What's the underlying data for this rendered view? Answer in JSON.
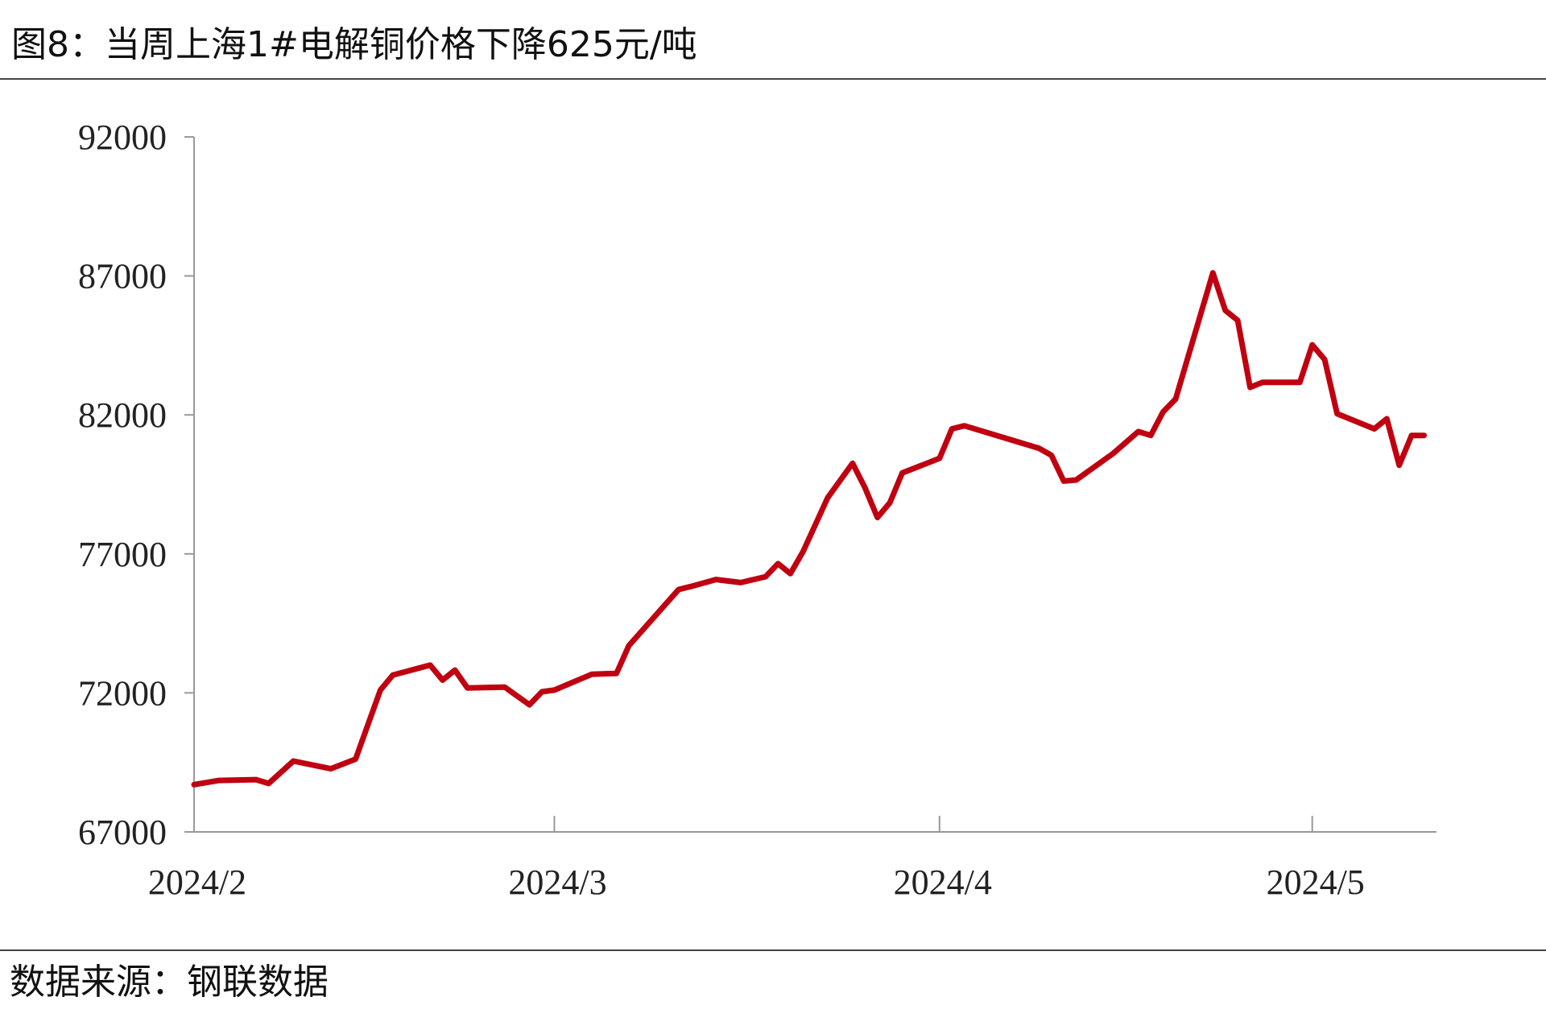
{
  "chart_data": {
    "type": "line",
    "title": "图8：当周上海1#电解铜价格下降625元/吨",
    "source": "数据来源：钢联数据",
    "x": [
      0,
      2,
      5,
      6,
      8,
      11,
      13,
      15,
      16,
      19,
      20,
      21,
      22,
      25,
      27,
      28,
      29,
      32,
      34,
      35,
      39,
      40,
      42,
      44,
      46,
      47,
      48,
      49,
      51,
      53,
      54,
      55,
      56,
      57,
      60,
      61,
      62,
      68,
      69,
      70,
      71,
      74,
      76,
      77,
      78,
      79,
      82,
      83,
      84,
      85,
      86,
      89,
      90,
      91,
      92,
      95,
      96,
      97,
      98,
      99
    ],
    "series": [
      {
        "name": "上海1#电解铜",
        "color": "#c00010",
        "values": [
          68700,
          68850,
          68880,
          68740,
          69550,
          69270,
          69620,
          72100,
          72640,
          73000,
          72460,
          72820,
          72180,
          72210,
          71570,
          72040,
          72100,
          72670,
          72700,
          73700,
          75720,
          75830,
          76080,
          75970,
          76180,
          76650,
          76290,
          77070,
          79020,
          80260,
          79380,
          78310,
          78840,
          79910,
          80440,
          81500,
          81610,
          80800,
          80550,
          79620,
          79660,
          80620,
          81400,
          81260,
          82110,
          82570,
          87110,
          85760,
          85400,
          82990,
          83170,
          83170,
          84520,
          83990,
          82040,
          81500,
          81860,
          80190,
          81260,
          81260
        ]
      }
    ],
    "xlim": [
      0,
      100
    ],
    "xticks": [
      {
        "value": 0,
        "label": "2024/2"
      },
      {
        "value": 29,
        "label": "2024/3"
      },
      {
        "value": 60,
        "label": "2024/4"
      },
      {
        "value": 90,
        "label": "2024/5"
      }
    ],
    "ylim": [
      67000,
      92000
    ],
    "yticks": [
      67000,
      72000,
      77000,
      82000,
      87000,
      92000
    ],
    "grid": false
  }
}
